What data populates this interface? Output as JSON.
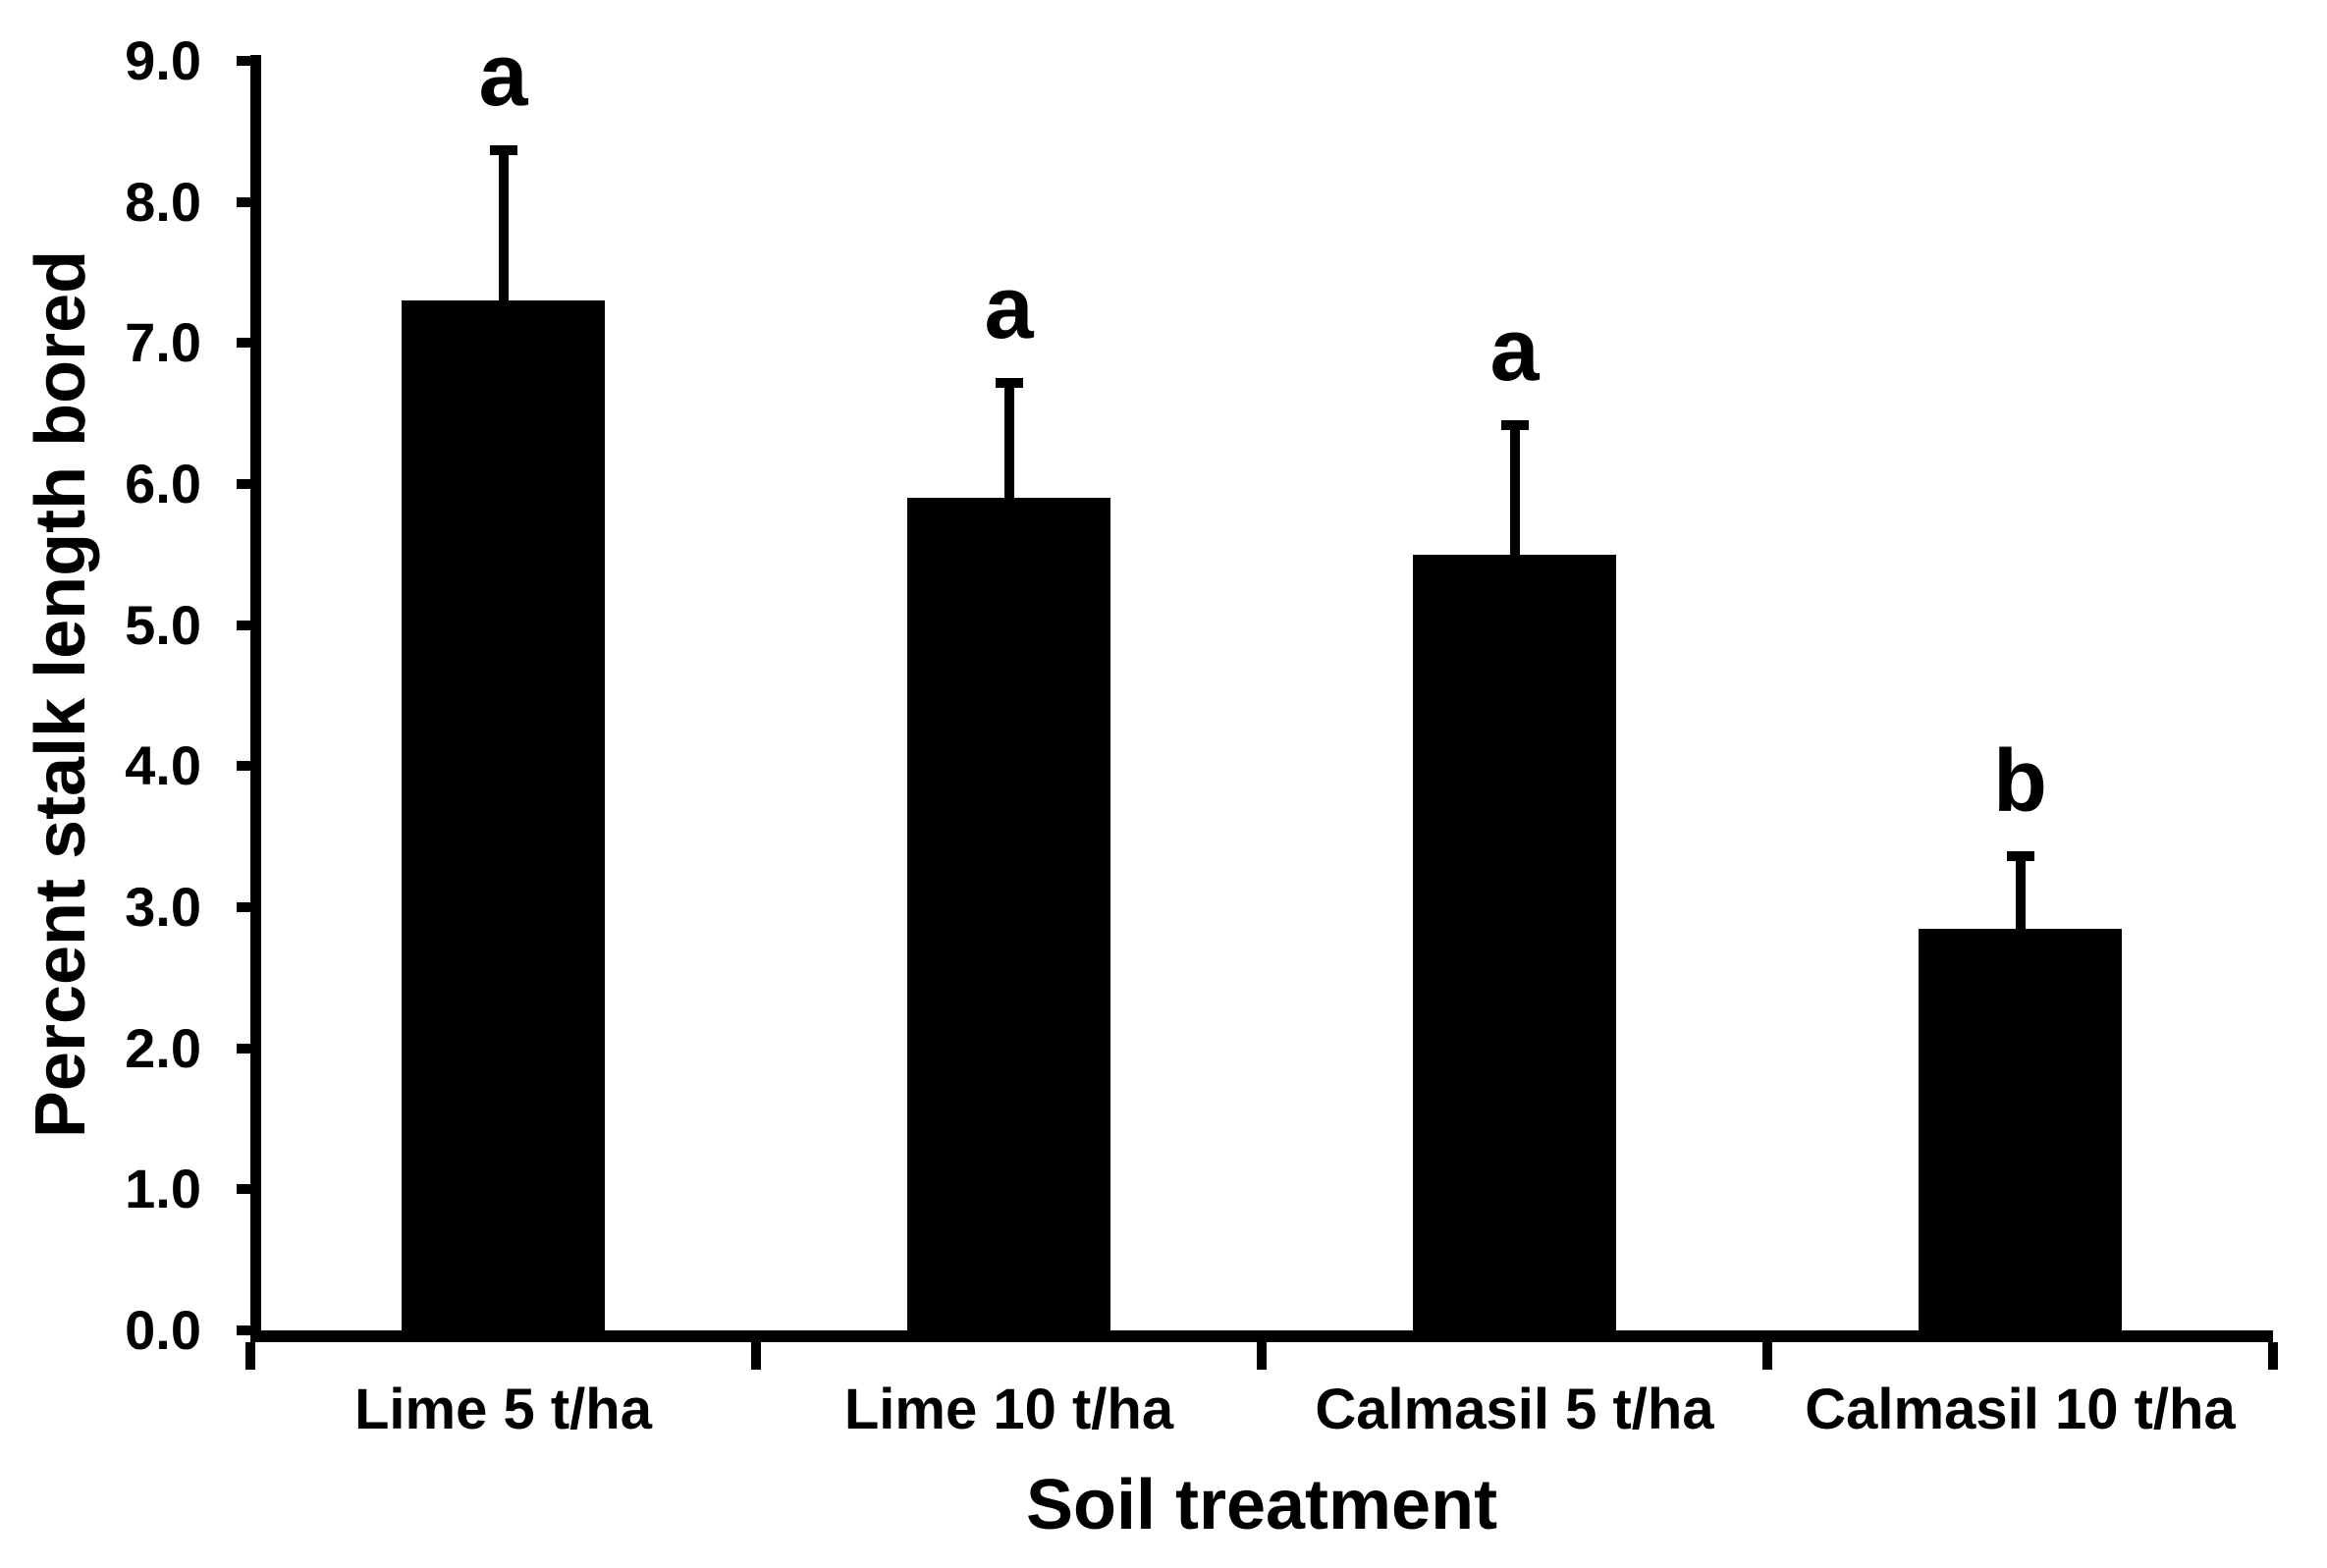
{
  "chart_data": {
    "type": "bar",
    "title": "",
    "xlabel": "Soil treatment",
    "ylabel": "Percent stalk length bored",
    "categories": [
      "Lime 5 t/ha",
      "Lime 10 t/ha",
      "Calmasil 5 t/ha",
      "Calmasil 10 t/ha"
    ],
    "values": [
      7.3,
      5.9,
      5.5,
      2.85
    ],
    "error_bars": {
      "direction": "upper",
      "values": [
        1.1,
        0.85,
        0.95,
        0.55
      ]
    },
    "significance_letters": [
      "a",
      "a",
      "a",
      "b"
    ],
    "ylim": [
      0,
      9
    ],
    "ytick_step": 1,
    "ytick_labels": [
      "0.0",
      "1.0",
      "2.0",
      "3.0",
      "4.0",
      "5.0",
      "6.0",
      "7.0",
      "8.0",
      "9.0"
    ],
    "grid": false,
    "legend": false,
    "bar_color": "#000000",
    "axis_color": "#000000",
    "text_color": "#000000",
    "background_color": "#ffffff"
  }
}
